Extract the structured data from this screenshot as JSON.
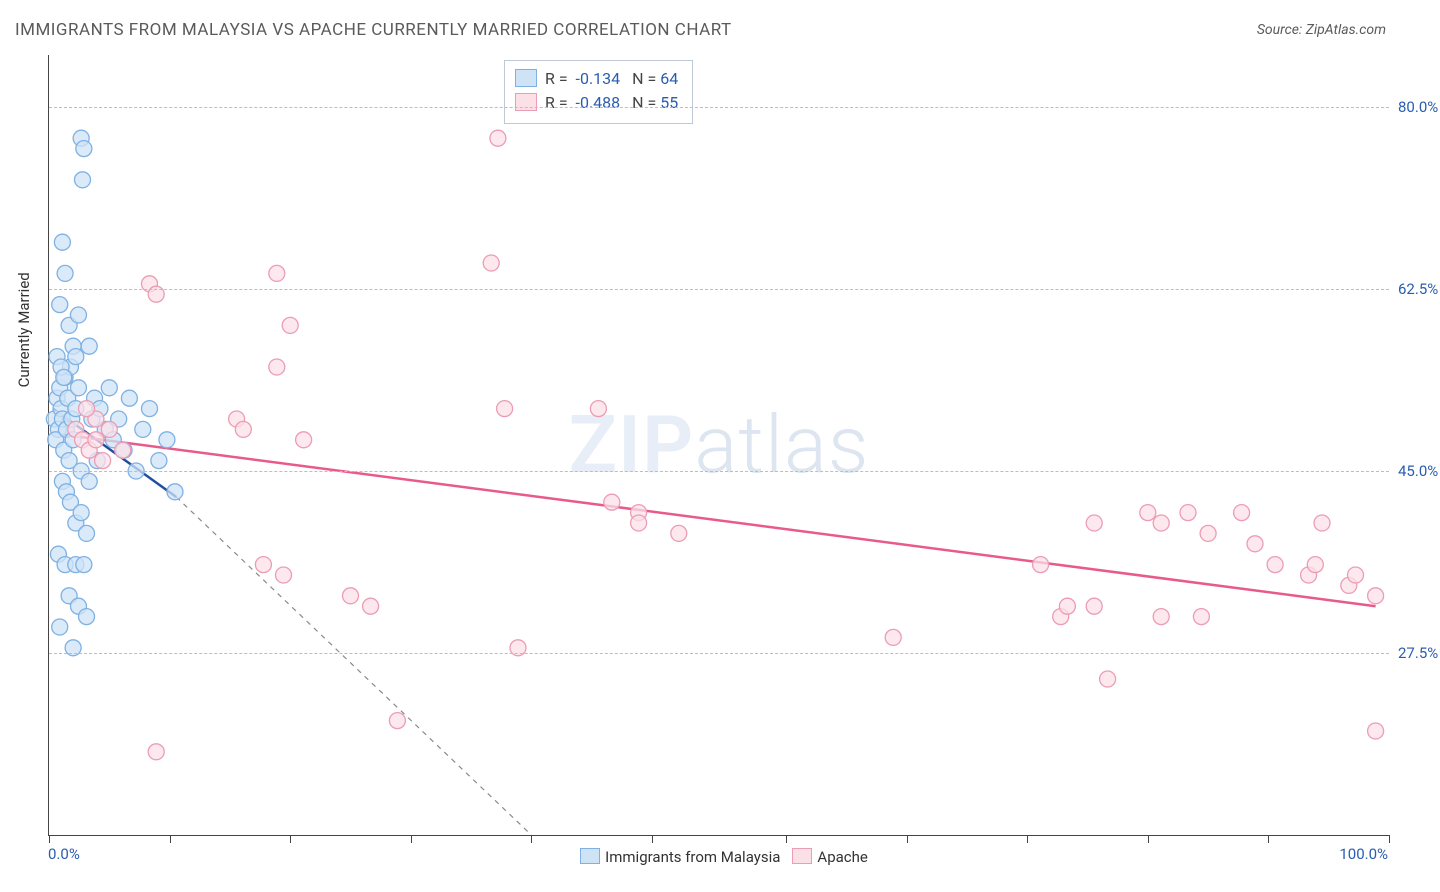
{
  "title": "IMMIGRANTS FROM MALAYSIA VS APACHE CURRENTLY MARRIED CORRELATION CHART",
  "source": "Source: ZipAtlas.com",
  "watermark_bold": "ZIP",
  "watermark_thin": "atlas",
  "y_axis_label": "Currently Married",
  "x_axis": {
    "min": 0.0,
    "max": 100.0,
    "start_label": "0.0%",
    "end_label": "100.0%",
    "ticks": [
      0,
      9,
      18,
      27,
      36,
      45,
      55,
      64,
      73,
      82,
      91,
      100
    ]
  },
  "y_axis": {
    "min": 10.0,
    "max": 85.0,
    "ticks": [
      {
        "v": 80.0,
        "label": "80.0%"
      },
      {
        "v": 62.5,
        "label": "62.5%"
      },
      {
        "v": 45.0,
        "label": "45.0%"
      },
      {
        "v": 27.5,
        "label": "27.5%"
      }
    ]
  },
  "series": [
    {
      "id": "malaysia",
      "legend_label": "Immigrants from Malaysia",
      "R": "-0.134",
      "N": "64",
      "R_prefix": "R = ",
      "N_prefix": "N = ",
      "marker_fill": "#cfe3f7",
      "marker_stroke": "#7fb1e3",
      "marker_radius": 8,
      "line_color": "#1f4ea1",
      "line_width": 2.5,
      "line_dash": "",
      "trend": {
        "x1": 0.3,
        "y1": 51.0,
        "x2": 9.5,
        "y2": 42.5
      },
      "extrap_dash": "5,5",
      "extrap_color": "#8a8a8a",
      "extrap": {
        "x1": 9.5,
        "y1": 42.5,
        "x2": 36.0,
        "y2": 10.0
      },
      "points": [
        [
          0.4,
          50
        ],
        [
          0.6,
          52
        ],
        [
          0.7,
          49
        ],
        [
          0.5,
          48
        ],
        [
          0.8,
          53
        ],
        [
          0.9,
          51
        ],
        [
          1.0,
          50
        ],
        [
          1.1,
          47
        ],
        [
          1.2,
          54
        ],
        [
          1.3,
          49
        ],
        [
          1.4,
          52
        ],
        [
          1.5,
          46
        ],
        [
          1.6,
          55
        ],
        [
          1.7,
          50
        ],
        [
          1.8,
          48
        ],
        [
          2.0,
          51
        ],
        [
          2.2,
          53
        ],
        [
          2.4,
          45
        ],
        [
          1.0,
          44
        ],
        [
          1.3,
          43
        ],
        [
          1.6,
          42
        ],
        [
          2.0,
          40
        ],
        [
          2.4,
          41
        ],
        [
          2.8,
          39
        ],
        [
          2.4,
          77
        ],
        [
          2.6,
          76
        ],
        [
          2.5,
          73
        ],
        [
          1.0,
          67
        ],
        [
          1.2,
          64
        ],
        [
          0.8,
          61
        ],
        [
          1.5,
          59
        ],
        [
          1.8,
          57
        ],
        [
          2.0,
          56
        ],
        [
          0.6,
          56
        ],
        [
          0.9,
          55
        ],
        [
          1.1,
          54
        ],
        [
          0.7,
          37
        ],
        [
          1.2,
          36
        ],
        [
          2.0,
          36
        ],
        [
          2.6,
          36
        ],
        [
          1.5,
          33
        ],
        [
          2.2,
          32
        ],
        [
          2.8,
          31
        ],
        [
          0.8,
          30
        ],
        [
          1.8,
          28
        ],
        [
          3.0,
          44
        ],
        [
          3.2,
          50
        ],
        [
          3.4,
          52
        ],
        [
          3.6,
          46
        ],
        [
          3.8,
          51
        ],
        [
          4.2,
          49
        ],
        [
          4.5,
          53
        ],
        [
          4.8,
          48
        ],
        [
          5.2,
          50
        ],
        [
          5.6,
          47
        ],
        [
          6.0,
          52
        ],
        [
          6.5,
          45
        ],
        [
          7.0,
          49
        ],
        [
          7.5,
          51
        ],
        [
          8.2,
          46
        ],
        [
          8.8,
          48
        ],
        [
          9.4,
          43
        ],
        [
          3.0,
          57
        ],
        [
          2.2,
          60
        ]
      ]
    },
    {
      "id": "apache",
      "legend_label": "Apache",
      "R": "-0.488",
      "N": "55",
      "R_prefix": "R = ",
      "N_prefix": "N = ",
      "marker_fill": "#fbe0e8",
      "marker_stroke": "#ec9cb3",
      "marker_radius": 8,
      "line_color": "#e85a8a",
      "line_width": 2.5,
      "line_dash": "",
      "trend": {
        "x1": 1.0,
        "y1": 48.5,
        "x2": 99.0,
        "y2": 32.0
      },
      "points": [
        [
          2.0,
          49
        ],
        [
          2.5,
          48
        ],
        [
          3.0,
          47
        ],
        [
          3.5,
          50
        ],
        [
          4.0,
          46
        ],
        [
          4.5,
          49
        ],
        [
          5.5,
          47
        ],
        [
          7.5,
          63
        ],
        [
          8.0,
          62
        ],
        [
          17.0,
          64
        ],
        [
          14.0,
          50
        ],
        [
          14.5,
          49
        ],
        [
          18.0,
          59
        ],
        [
          17.0,
          55
        ],
        [
          16.0,
          36
        ],
        [
          17.5,
          35
        ],
        [
          19.0,
          48
        ],
        [
          22.5,
          33
        ],
        [
          24.0,
          32
        ],
        [
          26.0,
          21
        ],
        [
          33.0,
          65
        ],
        [
          34.0,
          51
        ],
        [
          33.5,
          77
        ],
        [
          41.0,
          51
        ],
        [
          42.0,
          42
        ],
        [
          44.0,
          41
        ],
        [
          35.0,
          28
        ],
        [
          63.0,
          29
        ],
        [
          8.0,
          18
        ],
        [
          78.0,
          40
        ],
        [
          82.0,
          41
        ],
        [
          85.0,
          41
        ],
        [
          89.0,
          41
        ],
        [
          74.0,
          36
        ],
        [
          75.5,
          31
        ],
        [
          78.0,
          32
        ],
        [
          76.0,
          32
        ],
        [
          83.0,
          31
        ],
        [
          86.0,
          31
        ],
        [
          83.0,
          40
        ],
        [
          86.5,
          39
        ],
        [
          90.0,
          38
        ],
        [
          91.5,
          36
        ],
        [
          94.0,
          35
        ],
        [
          94.5,
          36
        ],
        [
          95.0,
          40
        ],
        [
          97.0,
          34
        ],
        [
          97.5,
          35
        ],
        [
          99.0,
          33
        ],
        [
          79.0,
          25
        ],
        [
          99.0,
          20
        ],
        [
          44.0,
          40
        ],
        [
          47.0,
          39
        ],
        [
          2.8,
          51
        ],
        [
          3.5,
          48
        ]
      ]
    }
  ],
  "colors": {
    "text_gray": "#5a5a5a",
    "axis_blue": "#2a5db0",
    "grid_dash": "#bdbdbd",
    "border": "#444444"
  },
  "fontsize": {
    "title": 17,
    "axis": 15,
    "legend": 15,
    "stats": 16
  }
}
